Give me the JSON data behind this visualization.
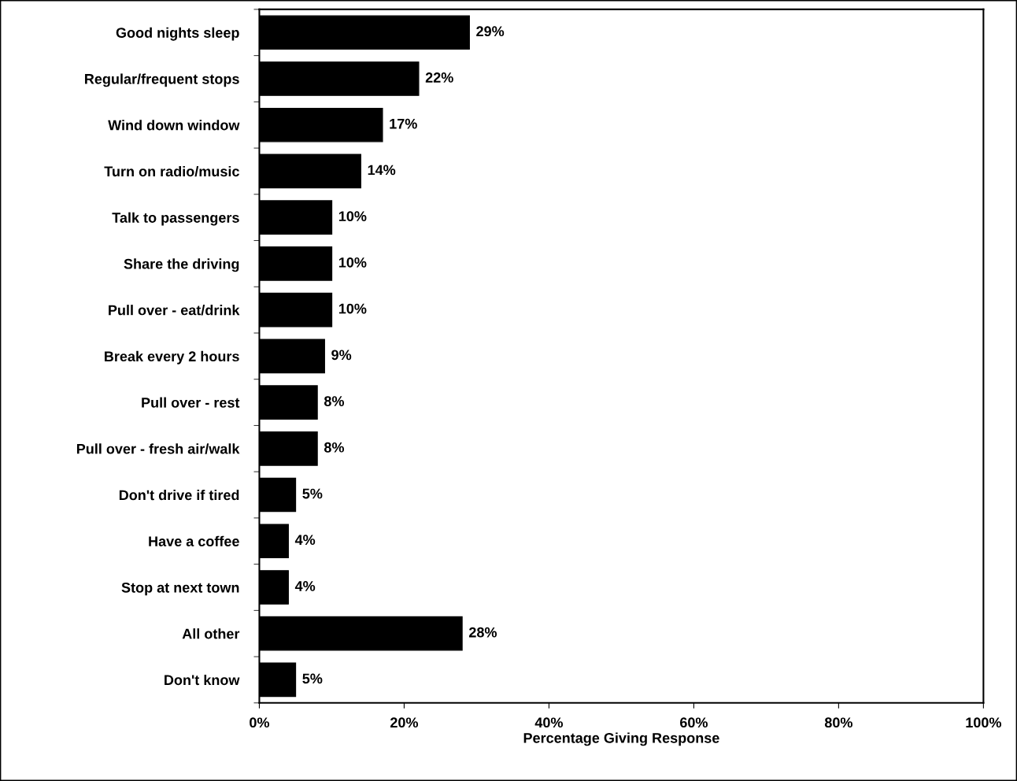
{
  "chart_data": {
    "type": "bar",
    "orientation": "horizontal",
    "xlabel": "Percentage Giving Response",
    "categories": [
      "Good nights sleep",
      "Regular/frequent stops",
      "Wind down window",
      "Turn on radio/music",
      "Talk to passengers",
      "Share the driving",
      "Pull over - eat/drink",
      "Break every 2 hours",
      "Pull over - rest",
      "Pull over - fresh air/walk",
      "Don't drive if tired",
      "Have a coffee",
      "Stop at next town",
      "All other",
      "Don't know"
    ],
    "values": [
      29,
      22,
      17,
      14,
      10,
      10,
      10,
      9,
      8,
      8,
      5,
      4,
      4,
      28,
      5
    ],
    "value_labels": [
      "29%",
      "22%",
      "17%",
      "14%",
      "10%",
      "10%",
      "10%",
      "9%",
      "8%",
      "8%",
      "5%",
      "4%",
      "4%",
      "28%",
      "5%"
    ],
    "color": "#000000",
    "xlim": [
      0,
      100
    ],
    "xticks": [
      {
        "value": 0,
        "label": "0%"
      },
      {
        "value": 20,
        "label": "20%"
      },
      {
        "value": 40,
        "label": "40%"
      },
      {
        "value": 60,
        "label": "60%"
      },
      {
        "value": 80,
        "label": "80%"
      },
      {
        "value": 100,
        "label": "100%"
      }
    ],
    "grid": false
  }
}
